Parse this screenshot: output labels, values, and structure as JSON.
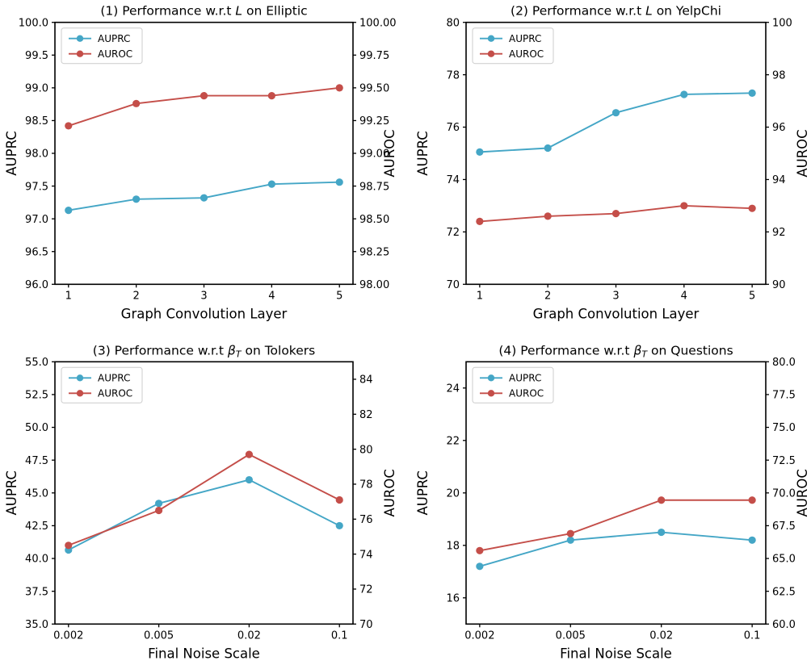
{
  "figure_title": "Performance sensitivity line charts (2x2 grid)",
  "colors": {
    "auprc": "#44A6C6",
    "auroc": "#C44E49",
    "axis": "#000000",
    "text": "#000000",
    "legend_border": "#cccccc",
    "background": "#ffffff"
  },
  "legend": {
    "items": [
      {
        "label": "AUPRC",
        "color_key": "auprc"
      },
      {
        "label": "AUROC",
        "color_key": "auroc"
      }
    ]
  },
  "chart_data": [
    {
      "id": 1,
      "type": "line",
      "title_full": "(1) Performance w.r.t L on Elliptic",
      "title_prefix": "(1) Performance w.r.t ",
      "title_math": "L",
      "title_math_sub": "",
      "title_suffix": " on Elliptic",
      "xlabel": "Graph Convolution Layer",
      "ylabel_left": "AUPRC",
      "ylabel_right": "AUROC",
      "x_tick_labels": [
        "1",
        "2",
        "3",
        "4",
        "5"
      ],
      "axes": {
        "left": {
          "min": 96,
          "max": 100,
          "tick_values": [
            100.0,
            99.5,
            99.0,
            98.5,
            98.0,
            97.5,
            97.0,
            96.5,
            96.0
          ],
          "tick_labels": [
            "100.0",
            "99.5",
            "99.0",
            "98.5",
            "98.0",
            "97.5",
            "97.0",
            "96.5",
            "96.0"
          ]
        },
        "right": {
          "min": 98,
          "max": 100,
          "tick_values": [
            100.0,
            99.75,
            99.5,
            99.25,
            99.0,
            98.75,
            98.5,
            98.25,
            98.0
          ],
          "tick_labels": [
            "100.00",
            "99.75",
            "99.50",
            "99.25",
            "99.00",
            "98.75",
            "98.50",
            "98.25",
            "98.00"
          ]
        }
      },
      "series": [
        {
          "name": "AUPRC",
          "axis": "left",
          "color_key": "auprc",
          "values": [
            97.13,
            97.3,
            97.32,
            97.53,
            97.56
          ]
        },
        {
          "name": "AUROC",
          "axis": "right",
          "color_key": "auroc",
          "values": [
            99.21,
            99.38,
            99.44,
            99.44,
            99.5
          ]
        }
      ]
    },
    {
      "id": 2,
      "type": "line",
      "title_full": "(2) Performance w.r.t L on YelpChi",
      "title_prefix": "(2) Performance w.r.t ",
      "title_math": "L",
      "title_math_sub": "",
      "title_suffix": " on YelpChi",
      "xlabel": "Graph Convolution Layer",
      "ylabel_left": "AUPRC",
      "ylabel_right": "AUROC",
      "x_tick_labels": [
        "1",
        "2",
        "3",
        "4",
        "5"
      ],
      "axes": {
        "left": {
          "min": 70,
          "max": 80,
          "tick_values": [
            80,
            78,
            76,
            74,
            72,
            70
          ],
          "tick_labels": [
            "80",
            "78",
            "76",
            "74",
            "72",
            "70"
          ]
        },
        "right": {
          "min": 90,
          "max": 100,
          "tick_values": [
            100,
            98,
            96,
            94,
            92,
            90
          ],
          "tick_labels": [
            "100",
            "98",
            "96",
            "94",
            "92",
            "90"
          ]
        }
      },
      "series": [
        {
          "name": "AUPRC",
          "axis": "left",
          "color_key": "auprc",
          "values": [
            75.05,
            75.2,
            76.55,
            77.25,
            77.3
          ]
        },
        {
          "name": "AUROC",
          "axis": "right",
          "color_key": "auroc",
          "values": [
            92.4,
            92.6,
            92.7,
            93.0,
            92.9
          ]
        }
      ]
    },
    {
      "id": 3,
      "type": "line",
      "title_full": "(3) Performance w.r.t β_T on Tolokers",
      "title_prefix": "(3) Performance w.r.t ",
      "title_math": "β",
      "title_math_sub": "T",
      "title_suffix": " on Tolokers",
      "xlabel": "Final Noise Scale",
      "ylabel_left": "AUPRC",
      "ylabel_right": "AUROC",
      "x_tick_labels": [
        "0.002",
        "0.005",
        "0.02",
        "0.1"
      ],
      "axes": {
        "left": {
          "min": 35,
          "max": 55,
          "tick_values": [
            55.0,
            52.5,
            50.0,
            47.5,
            45.0,
            42.5,
            40.0,
            37.5,
            35.0
          ],
          "tick_labels": [
            "55.0",
            "52.5",
            "50.0",
            "47.5",
            "45.0",
            "42.5",
            "40.0",
            "37.5",
            "35.0"
          ]
        },
        "right": {
          "min": 70,
          "max": 85,
          "tick_values": [
            84,
            82,
            80,
            78,
            76,
            74,
            72,
            70
          ],
          "tick_labels": [
            "84",
            "82",
            "80",
            "78",
            "76",
            "74",
            "72",
            "70"
          ]
        }
      },
      "series": [
        {
          "name": "AUPRC",
          "axis": "left",
          "color_key": "auprc",
          "values": [
            40.65,
            44.2,
            46.0,
            42.5
          ]
        },
        {
          "name": "AUROC",
          "axis": "right",
          "color_key": "auroc",
          "values": [
            74.5,
            76.5,
            79.7,
            77.1
          ]
        }
      ]
    },
    {
      "id": 4,
      "type": "line",
      "title_full": "(4) Performance w.r.t β_T on Questions",
      "title_prefix": "(4) Performance w.r.t ",
      "title_math": "β",
      "title_math_sub": "T",
      "title_suffix": " on Questions",
      "xlabel": "Final Noise Scale",
      "ylabel_left": "AUPRC",
      "ylabel_right": "AUROC",
      "x_tick_labels": [
        "0.002",
        "0.005",
        "0.02",
        "0.1"
      ],
      "axes": {
        "left": {
          "min": 15,
          "max": 25,
          "tick_values": [
            24,
            22,
            20,
            18,
            16
          ],
          "tick_labels": [
            "24",
            "22",
            "20",
            "18",
            "16"
          ]
        },
        "right": {
          "min": 60,
          "max": 80,
          "tick_values": [
            80.0,
            77.5,
            75.0,
            72.5,
            70.0,
            67.5,
            65.0,
            62.5,
            60.0
          ],
          "tick_labels": [
            "80.0",
            "77.5",
            "75.0",
            "72.5",
            "70.0",
            "67.5",
            "65.0",
            "62.5",
            "60.0"
          ]
        }
      },
      "series": [
        {
          "name": "AUPRC",
          "axis": "left",
          "color_key": "auprc",
          "values": [
            17.2,
            18.2,
            18.5,
            18.2
          ]
        },
        {
          "name": "AUROC",
          "axis": "right",
          "color_key": "auroc",
          "values": [
            65.6,
            66.9,
            69.45,
            69.45
          ]
        }
      ]
    }
  ]
}
